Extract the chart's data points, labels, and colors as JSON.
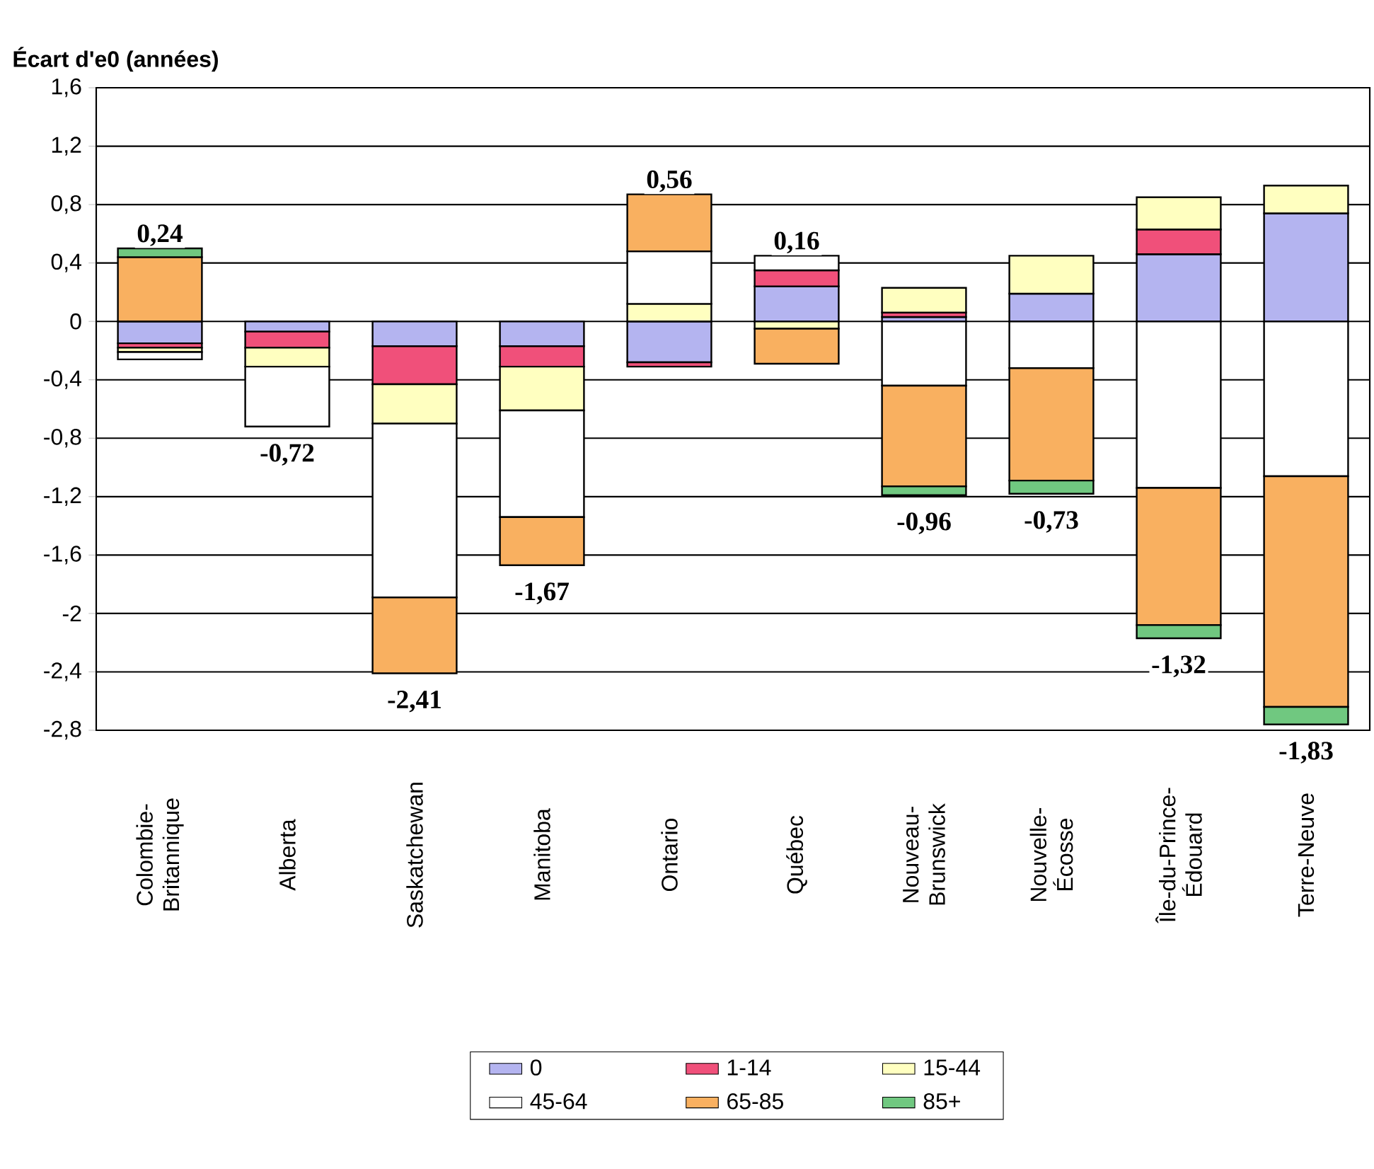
{
  "chart_data": {
    "type": "bar",
    "stacked": true,
    "ylabel": "Écart d'e0 (années)",
    "categories": [
      "Colombie-Britannique",
      "Alberta",
      "Saskatchewan",
      "Manitoba",
      "Ontario",
      "Québec",
      "Nouveau-Brunswick",
      "Nouvelle-Écosse",
      "Île-du-Prince-Édouard",
      "Terre-Neuve"
    ],
    "series": [
      {
        "name": "0",
        "color": "#b4b4f0",
        "values": [
          -0.15,
          -0.07,
          -0.17,
          -0.17,
          -0.28,
          0.24,
          0.03,
          0.19,
          0.46,
          0.74
        ]
      },
      {
        "name": "1-14",
        "color": "#f0507a",
        "values": [
          -0.03,
          -0.11,
          -0.26,
          -0.14,
          -0.03,
          0.11,
          0.03,
          0,
          0.17,
          0
        ]
      },
      {
        "name": "15-44",
        "color": "#ffffc0",
        "values": [
          -0.03,
          -0.13,
          -0.27,
          -0.3,
          0.12,
          -0.05,
          0.17,
          0.26,
          0.22,
          0.19
        ]
      },
      {
        "name": "45-64",
        "color": "#ffffff",
        "values": [
          -0.05,
          -0.41,
          -1.19,
          -0.73,
          0.36,
          0.1,
          -0.44,
          -0.32,
          -1.14,
          -1.06
        ]
      },
      {
        "name": "65-85",
        "color": "#f9b060",
        "values": [
          0.44,
          0,
          -0.52,
          -0.33,
          0.39,
          -0.24,
          -0.69,
          -0.77,
          -0.94,
          -1.58
        ]
      },
      {
        "name": "85+",
        "color": "#70c880",
        "values": [
          0.06,
          0,
          0,
          0,
          0,
          0,
          -0.06,
          -0.09,
          -0.09,
          -0.12
        ]
      }
    ],
    "value_labels": [
      "0,24",
      "-0,72",
      "-2,41",
      "-1,67",
      "0,56",
      "0,16",
      "-0,96",
      "-0,73",
      "-1,32",
      "-1,83"
    ],
    "ylim": [
      -2.8,
      1.6
    ],
    "yticks": [
      {
        "value": -2.8,
        "label": "-2,8"
      },
      {
        "value": -2.4,
        "label": "-2,4"
      },
      {
        "value": -2,
        "label": "-2"
      },
      {
        "value": -1.6,
        "label": "-1,6"
      },
      {
        "value": -1.2,
        "label": "-1,2"
      },
      {
        "value": -0.8,
        "label": "-0,8"
      },
      {
        "value": -0.4,
        "label": "-0,4"
      },
      {
        "value": 0,
        "label": "0"
      },
      {
        "value": 0.4,
        "label": "0,4"
      },
      {
        "value": 0.8,
        "label": "0,8"
      },
      {
        "value": 1.2,
        "label": "1,2"
      },
      {
        "value": 1.6,
        "label": "1,6"
      }
    ],
    "grid": "y",
    "legend": "bottom"
  }
}
